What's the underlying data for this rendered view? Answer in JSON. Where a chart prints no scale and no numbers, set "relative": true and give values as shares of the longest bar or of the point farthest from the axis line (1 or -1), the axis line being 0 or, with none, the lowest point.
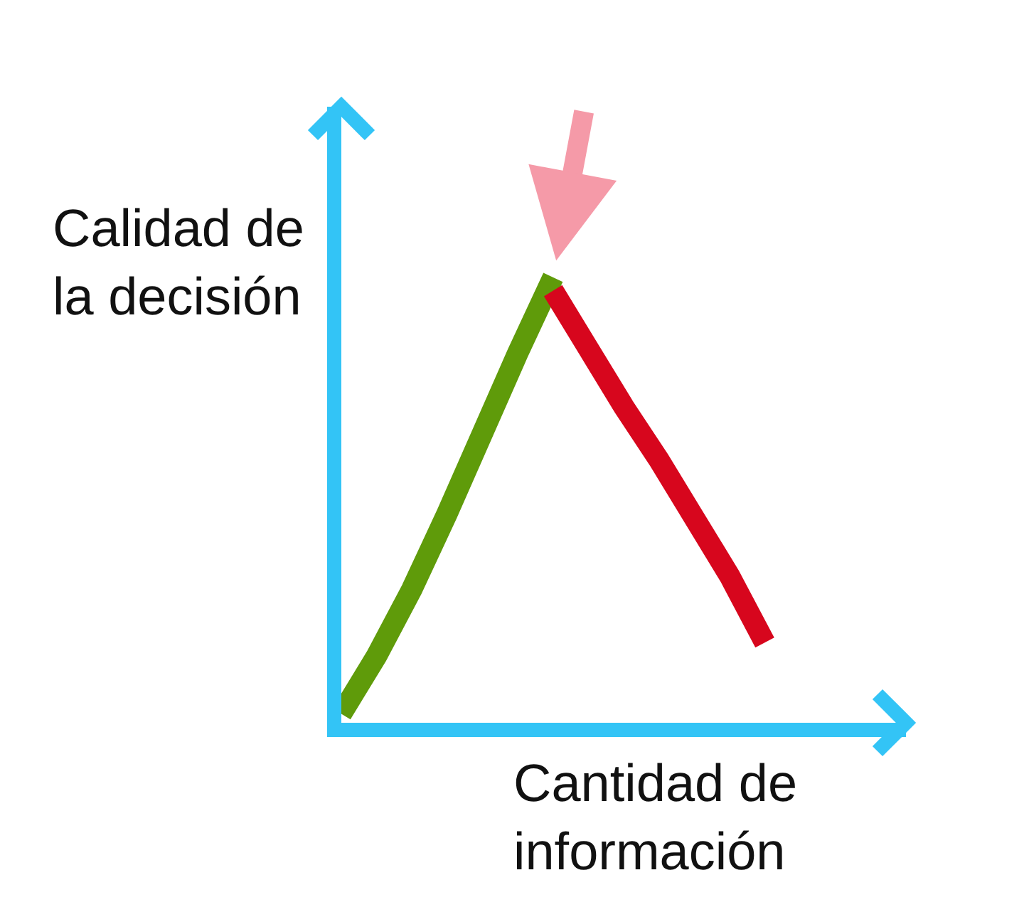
{
  "chart_data": {
    "type": "line",
    "relative": true,
    "xlabel": "Cantidad de\ninformación",
    "ylabel": "Calidad de\nla decisión",
    "categories": [
      null,
      null,
      null,
      null,
      null,
      null,
      null,
      null,
      null,
      null,
      null,
      null,
      null,
      null,
      null,
      null,
      null
    ],
    "series": [
      {
        "color": "#5f9b0a",
        "values": [
          0.02,
          0.15,
          0.3,
          0.47,
          0.65,
          0.83,
          1.0,
          null,
          null,
          null,
          null,
          null,
          null,
          null,
          null,
          null,
          null
        ]
      },
      {
        "color": "#d7061d",
        "values": [
          null,
          null,
          null,
          null,
          null,
          null,
          0.97,
          0.84,
          0.71,
          0.59,
          0.46,
          0.33,
          0.18,
          null,
          null,
          null,
          null
        ]
      }
    ],
    "marker": "none"
  }
}
